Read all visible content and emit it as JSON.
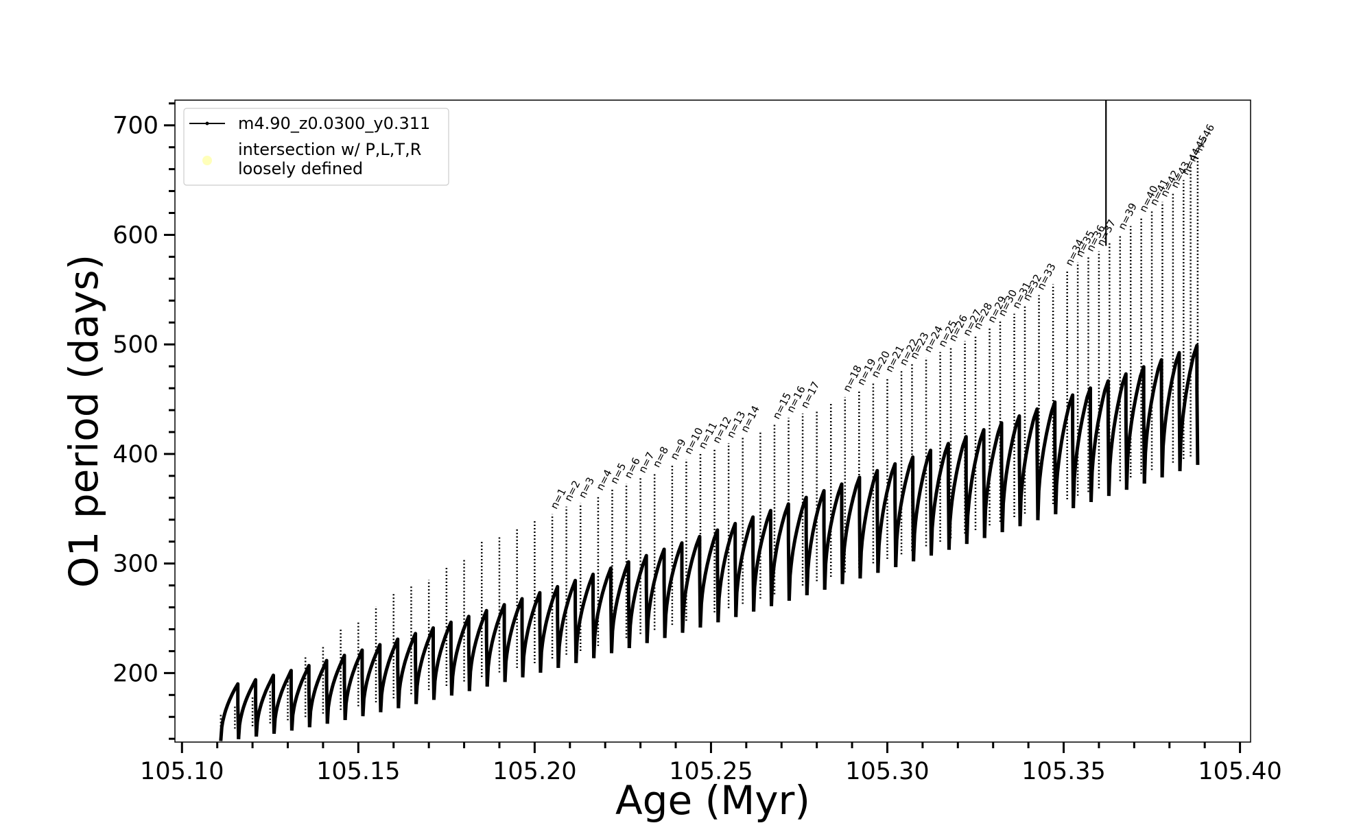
{
  "chart_data": {
    "type": "line",
    "title": "",
    "xlabel": "Age (Myr)",
    "ylabel": "O1 period (days)",
    "xlim": [
      105.098,
      105.403
    ],
    "ylim": [
      137,
      723
    ],
    "xticks": [
      105.1,
      105.15,
      105.2,
      105.25,
      105.3,
      105.35,
      105.4
    ],
    "xtick_labels": [
      "105.10",
      "105.15",
      "105.20",
      "105.25",
      "105.30",
      "105.35",
      "105.40"
    ],
    "yticks": [
      200,
      300,
      400,
      500,
      600,
      700
    ],
    "ytick_labels": [
      "200",
      "300",
      "400",
      "500",
      "600",
      "700"
    ],
    "grid": false,
    "legend_position": "top-left",
    "series": [
      {
        "name": "m4.90_z0.0300_y0.311",
        "color": "#000000",
        "marker": "dot",
        "description_loops": {
          "age_start": 105.111,
          "age_end": 105.388,
          "loop_spacing_myr": 0.005,
          "upper_envelope_start": 185,
          "upper_envelope_end": 497,
          "lower_envelope_start": 138,
          "lower_envelope_end": 390
        }
      },
      {
        "name": "intersection w/ P,L,T,R loosely defined",
        "color": "#ffffb3",
        "marker": "circle",
        "values": []
      }
    ],
    "legend": [
      {
        "label": "m4.90_z0.0300_y0.311",
        "marker": "line-dot",
        "color": "#000000"
      },
      {
        "label": "intersection w/ P,L,T,R\nloosely defined",
        "marker": "circle",
        "color": "#ffffb3"
      }
    ],
    "vertical_line": {
      "x": 105.362
    },
    "spikes": [
      {
        "x": 105.111,
        "y": 163
      },
      {
        "x": 105.115,
        "y": 170
      },
      {
        "x": 105.12,
        "y": 178
      },
      {
        "x": 105.125,
        "y": 185
      },
      {
        "x": 105.13,
        "y": 193
      },
      {
        "x": 105.135,
        "y": 215
      },
      {
        "x": 105.14,
        "y": 225
      },
      {
        "x": 105.145,
        "y": 240
      },
      {
        "x": 105.15,
        "y": 248
      },
      {
        "x": 105.155,
        "y": 261
      },
      {
        "x": 105.16,
        "y": 273
      },
      {
        "x": 105.165,
        "y": 280
      },
      {
        "x": 105.17,
        "y": 285
      },
      {
        "x": 105.175,
        "y": 297
      },
      {
        "x": 105.18,
        "y": 305
      },
      {
        "x": 105.185,
        "y": 321
      },
      {
        "x": 105.19,
        "y": 325
      },
      {
        "x": 105.195,
        "y": 333
      },
      {
        "x": 105.2,
        "y": 340
      },
      {
        "x": 105.205,
        "y": 345
      },
      {
        "x": 105.209,
        "y": 352
      },
      {
        "x": 105.213,
        "y": 355
      },
      {
        "x": 105.218,
        "y": 361
      },
      {
        "x": 105.222,
        "y": 368
      },
      {
        "x": 105.226,
        "y": 373
      },
      {
        "x": 105.23,
        "y": 378
      },
      {
        "x": 105.234,
        "y": 383
      },
      {
        "x": 105.239,
        "y": 390
      },
      {
        "x": 105.243,
        "y": 395
      },
      {
        "x": 105.247,
        "y": 400
      },
      {
        "x": 105.251,
        "y": 405
      },
      {
        "x": 105.255,
        "y": 410
      },
      {
        "x": 105.259,
        "y": 415
      },
      {
        "x": 105.264,
        "y": 420
      },
      {
        "x": 105.268,
        "y": 427
      },
      {
        "x": 105.272,
        "y": 433
      },
      {
        "x": 105.276,
        "y": 437
      },
      {
        "x": 105.28,
        "y": 440
      },
      {
        "x": 105.284,
        "y": 446
      },
      {
        "x": 105.288,
        "y": 452
      },
      {
        "x": 105.292,
        "y": 458
      },
      {
        "x": 105.296,
        "y": 465
      },
      {
        "x": 105.3,
        "y": 470
      },
      {
        "x": 105.304,
        "y": 476
      },
      {
        "x": 105.307,
        "y": 482
      },
      {
        "x": 105.311,
        "y": 488
      },
      {
        "x": 105.315,
        "y": 493
      },
      {
        "x": 105.318,
        "y": 498
      },
      {
        "x": 105.322,
        "y": 503
      },
      {
        "x": 105.325,
        "y": 509
      },
      {
        "x": 105.329,
        "y": 515
      },
      {
        "x": 105.332,
        "y": 521
      },
      {
        "x": 105.336,
        "y": 528
      },
      {
        "x": 105.339,
        "y": 535
      },
      {
        "x": 105.343,
        "y": 545
      },
      {
        "x": 105.347,
        "y": 555
      },
      {
        "x": 105.351,
        "y": 567
      },
      {
        "x": 105.354,
        "y": 575
      },
      {
        "x": 105.357,
        "y": 580
      },
      {
        "x": 105.36,
        "y": 585
      },
      {
        "x": 105.363,
        "y": 593
      },
      {
        "x": 105.366,
        "y": 600
      },
      {
        "x": 105.369,
        "y": 608
      },
      {
        "x": 105.372,
        "y": 616
      },
      {
        "x": 105.375,
        "y": 622
      },
      {
        "x": 105.378,
        "y": 630
      },
      {
        "x": 105.381,
        "y": 638
      },
      {
        "x": 105.384,
        "y": 650
      },
      {
        "x": 105.386,
        "y": 662
      },
      {
        "x": 105.388,
        "y": 672
      }
    ],
    "annotations": [
      {
        "text": "n=1",
        "x": 105.205,
        "y": 349
      },
      {
        "text": "n=2",
        "x": 105.209,
        "y": 356
      },
      {
        "text": "n=3",
        "x": 105.213,
        "y": 359
      },
      {
        "text": "n=4",
        "x": 105.218,
        "y": 366
      },
      {
        "text": "n=5",
        "x": 105.222,
        "y": 372
      },
      {
        "text": "n=6",
        "x": 105.226,
        "y": 377
      },
      {
        "text": "n=7",
        "x": 105.23,
        "y": 382
      },
      {
        "text": "n=8",
        "x": 105.234,
        "y": 387
      },
      {
        "text": "n=9",
        "x": 105.239,
        "y": 394
      },
      {
        "text": "n=10",
        "x": 105.243,
        "y": 399
      },
      {
        "text": "n=11",
        "x": 105.247,
        "y": 404
      },
      {
        "text": "n=12",
        "x": 105.251,
        "y": 409
      },
      {
        "text": "n=13",
        "x": 105.255,
        "y": 414
      },
      {
        "text": "n=14",
        "x": 105.259,
        "y": 419
      },
      {
        "text": "n=15",
        "x": 105.268,
        "y": 431
      },
      {
        "text": "n=16",
        "x": 105.272,
        "y": 437
      },
      {
        "text": "n=17",
        "x": 105.276,
        "y": 441
      },
      {
        "text": "n=18",
        "x": 105.288,
        "y": 456
      },
      {
        "text": "n=19",
        "x": 105.292,
        "y": 462
      },
      {
        "text": "n=20",
        "x": 105.296,
        "y": 469
      },
      {
        "text": "n=21",
        "x": 105.3,
        "y": 474
      },
      {
        "text": "n=22",
        "x": 105.304,
        "y": 480
      },
      {
        "text": "n=23",
        "x": 105.307,
        "y": 486
      },
      {
        "text": "n=24",
        "x": 105.311,
        "y": 492
      },
      {
        "text": "n=25",
        "x": 105.315,
        "y": 497
      },
      {
        "text": "n=26",
        "x": 105.318,
        "y": 502
      },
      {
        "text": "n=27",
        "x": 105.322,
        "y": 507
      },
      {
        "text": "n=28",
        "x": 105.325,
        "y": 513
      },
      {
        "text": "n=29",
        "x": 105.329,
        "y": 519
      },
      {
        "text": "n=30",
        "x": 105.332,
        "y": 525
      },
      {
        "text": "n=31",
        "x": 105.336,
        "y": 532
      },
      {
        "text": "n=32",
        "x": 105.339,
        "y": 539
      },
      {
        "text": "n=33",
        "x": 105.343,
        "y": 549
      },
      {
        "text": "n=34",
        "x": 105.351,
        "y": 571
      },
      {
        "text": "n=35",
        "x": 105.354,
        "y": 579
      },
      {
        "text": "n=36",
        "x": 105.357,
        "y": 584
      },
      {
        "text": "n=37",
        "x": 105.36,
        "y": 589
      },
      {
        "text": "n=39",
        "x": 105.366,
        "y": 604
      },
      {
        "text": "n=40",
        "x": 105.372,
        "y": 620
      },
      {
        "text": "n=41",
        "x": 105.375,
        "y": 626
      },
      {
        "text": "n=42",
        "x": 105.378,
        "y": 634
      },
      {
        "text": "n=43",
        "x": 105.381,
        "y": 642
      },
      {
        "text": "n=44",
        "x": 105.384,
        "y": 654
      },
      {
        "text": "n=45",
        "x": 105.386,
        "y": 666
      },
      {
        "text": "n=46",
        "x": 105.388,
        "y": 676
      }
    ]
  }
}
